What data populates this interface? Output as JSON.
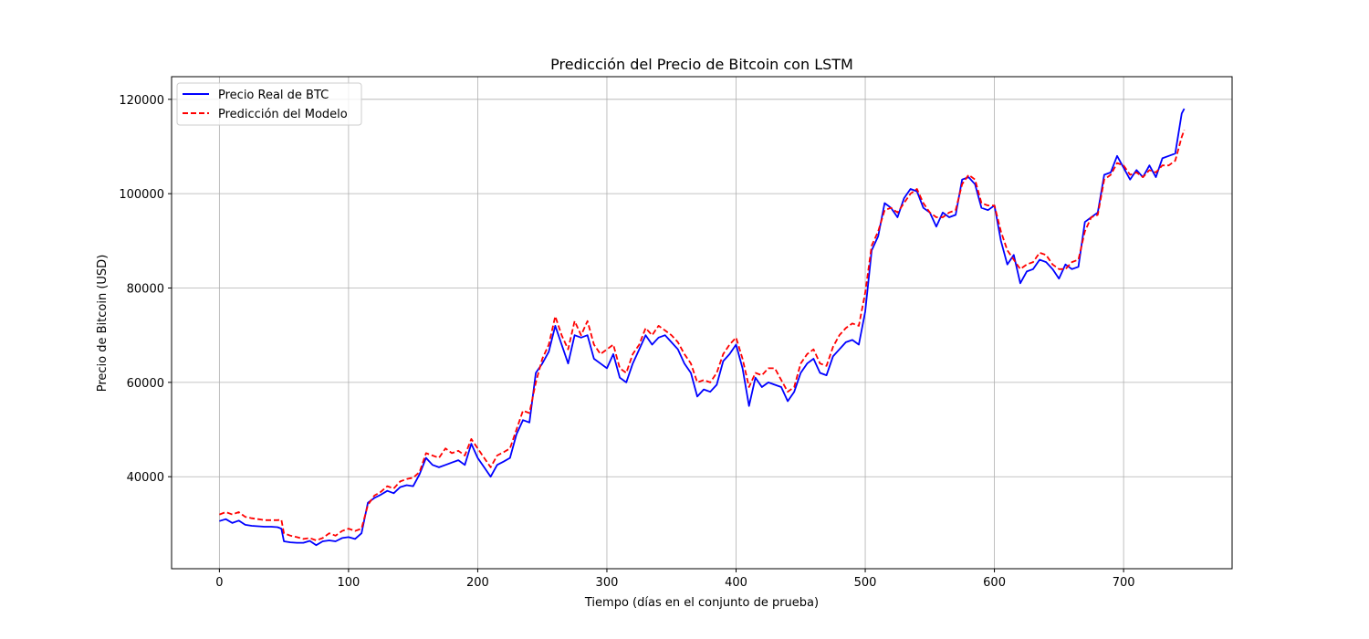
{
  "chart_data": {
    "type": "line",
    "title": "Predicción del Precio de Bitcoin con LSTM",
    "xlabel": "Tiempo (días en el conjunto de prueba)",
    "ylabel": "Precio de Bitcoin (USD)",
    "xlim": [
      -37,
      784
    ],
    "ylim": [
      20500,
      124800
    ],
    "xticks": [
      0,
      100,
      200,
      300,
      400,
      500,
      600,
      700
    ],
    "yticks": [
      40000,
      60000,
      80000,
      100000,
      120000
    ],
    "grid": true,
    "legend": "top-left",
    "series": [
      {
        "name": "Precio Real de BTC",
        "color": "#0000ff",
        "style": "solid",
        "x": [
          0,
          5,
          10,
          15,
          20,
          25,
          30,
          35,
          40,
          45,
          48,
          50,
          55,
          60,
          65,
          70,
          75,
          80,
          85,
          90,
          95,
          100,
          105,
          110,
          115,
          120,
          125,
          130,
          135,
          140,
          145,
          150,
          155,
          160,
          165,
          170,
          175,
          180,
          185,
          190,
          195,
          200,
          205,
          210,
          215,
          220,
          225,
          230,
          235,
          240,
          245,
          250,
          255,
          260,
          265,
          270,
          275,
          280,
          285,
          290,
          295,
          300,
          305,
          310,
          315,
          320,
          325,
          330,
          335,
          340,
          345,
          350,
          355,
          360,
          365,
          370,
          375,
          380,
          385,
          390,
          395,
          400,
          405,
          410,
          415,
          420,
          425,
          430,
          435,
          440,
          445,
          450,
          455,
          460,
          465,
          470,
          475,
          480,
          485,
          490,
          495,
          500,
          505,
          510,
          515,
          520,
          525,
          530,
          535,
          540,
          545,
          550,
          555,
          560,
          565,
          570,
          575,
          580,
          585,
          590,
          595,
          600,
          605,
          610,
          615,
          620,
          625,
          630,
          635,
          640,
          645,
          650,
          655,
          660,
          665,
          670,
          675,
          680,
          685,
          690,
          695,
          700,
          705,
          710,
          715,
          720,
          725,
          730,
          735,
          740,
          745,
          747
        ],
        "values": [
          30600,
          31000,
          30200,
          30700,
          29800,
          29600,
          29500,
          29400,
          29400,
          29300,
          29000,
          26300,
          26100,
          26000,
          26000,
          26400,
          25500,
          26300,
          26500,
          26300,
          27000,
          27200,
          26800,
          28000,
          34500,
          35500,
          36200,
          37000,
          36500,
          37800,
          38200,
          38000,
          40500,
          44000,
          42500,
          42000,
          42500,
          43000,
          43500,
          42500,
          47000,
          44000,
          42000,
          40000,
          42500,
          43200,
          44000,
          49000,
          52000,
          51500,
          62000,
          64000,
          66500,
          72000,
          68000,
          64000,
          70000,
          69500,
          70000,
          65000,
          64000,
          63000,
          66000,
          61000,
          60000,
          64000,
          67000,
          70000,
          68000,
          69500,
          70000,
          68500,
          67000,
          64000,
          62000,
          57000,
          58500,
          58000,
          59500,
          64500,
          66000,
          68000,
          63000,
          55000,
          61000,
          59000,
          60000,
          59500,
          59000,
          56000,
          58000,
          62000,
          64000,
          65000,
          62000,
          61500,
          65500,
          67000,
          68500,
          69000,
          68000,
          75000,
          88000,
          91000,
          98000,
          97000,
          95000,
          99000,
          101000,
          100500,
          97000,
          96000,
          93000,
          96000,
          95000,
          95500,
          103000,
          103500,
          102000,
          97000,
          96500,
          97500,
          90000,
          85000,
          87000,
          81000,
          83500,
          84000,
          86000,
          85500,
          84000,
          82000,
          85000,
          84000,
          84500,
          94000,
          95000,
          96000,
          104000,
          104500,
          108000,
          105500,
          103000,
          105000,
          103500,
          106000,
          103500,
          107500,
          108000,
          108500,
          117000,
          118000
        ]
      },
      {
        "name": "Predicción del Modelo",
        "color": "#ff0000",
        "style": "dashed",
        "x": [
          0,
          5,
          10,
          15,
          20,
          25,
          30,
          35,
          40,
          45,
          48,
          50,
          55,
          60,
          65,
          70,
          75,
          80,
          85,
          90,
          95,
          100,
          105,
          110,
          115,
          120,
          125,
          130,
          135,
          140,
          145,
          150,
          155,
          160,
          165,
          170,
          175,
          180,
          185,
          190,
          195,
          200,
          205,
          210,
          215,
          220,
          225,
          230,
          235,
          240,
          245,
          250,
          255,
          260,
          265,
          270,
          275,
          280,
          285,
          290,
          295,
          300,
          305,
          310,
          315,
          320,
          325,
          330,
          335,
          340,
          345,
          350,
          355,
          360,
          365,
          370,
          375,
          380,
          385,
          390,
          395,
          400,
          405,
          410,
          415,
          420,
          425,
          430,
          435,
          440,
          445,
          450,
          455,
          460,
          465,
          470,
          475,
          480,
          485,
          490,
          495,
          500,
          505,
          510,
          515,
          520,
          525,
          530,
          535,
          540,
          545,
          550,
          555,
          560,
          565,
          570,
          575,
          580,
          585,
          590,
          595,
          600,
          605,
          610,
          615,
          620,
          625,
          630,
          635,
          640,
          645,
          650,
          655,
          660,
          665,
          670,
          675,
          680,
          685,
          690,
          695,
          700,
          705,
          710,
          715,
          720,
          725,
          730,
          735,
          740,
          745,
          747
        ],
        "values": [
          32000,
          32500,
          32000,
          32500,
          31500,
          31200,
          31000,
          30800,
          30800,
          30800,
          30900,
          28000,
          27500,
          27200,
          26800,
          27000,
          26500,
          27000,
          28000,
          27500,
          28500,
          29000,
          28500,
          29000,
          34000,
          36000,
          36800,
          38000,
          37500,
          39000,
          39500,
          39800,
          41000,
          45000,
          44500,
          44000,
          46000,
          45000,
          45500,
          44500,
          48000,
          46000,
          44000,
          42000,
          44500,
          45200,
          46000,
          50000,
          54000,
          53500,
          60000,
          65000,
          68000,
          74000,
          70000,
          67000,
          73000,
          70000,
          73000,
          68000,
          66000,
          67000,
          68000,
          63000,
          62000,
          66000,
          68000,
          71500,
          70000,
          72000,
          71000,
          70000,
          68500,
          66000,
          64000,
          60000,
          60500,
          60000,
          62000,
          66000,
          68000,
          69500,
          65000,
          59000,
          62000,
          61500,
          63000,
          63000,
          60500,
          58000,
          59000,
          64000,
          66000,
          67000,
          64000,
          63500,
          67500,
          70000,
          71500,
          72500,
          72000,
          79000,
          89000,
          92000,
          96500,
          97000,
          96000,
          98000,
          100000,
          101000,
          98000,
          96000,
          95000,
          95000,
          96000,
          96500,
          102000,
          104000,
          103000,
          98000,
          97500,
          97500,
          92000,
          88000,
          86000,
          84000,
          85000,
          85500,
          87500,
          87000,
          85000,
          84000,
          84000,
          85500,
          86000,
          92000,
          95000,
          95500,
          103000,
          104000,
          106500,
          106000,
          104000,
          104500,
          103500,
          105000,
          104500,
          106000,
          106000,
          107000,
          112000,
          113500
        ]
      }
    ]
  }
}
